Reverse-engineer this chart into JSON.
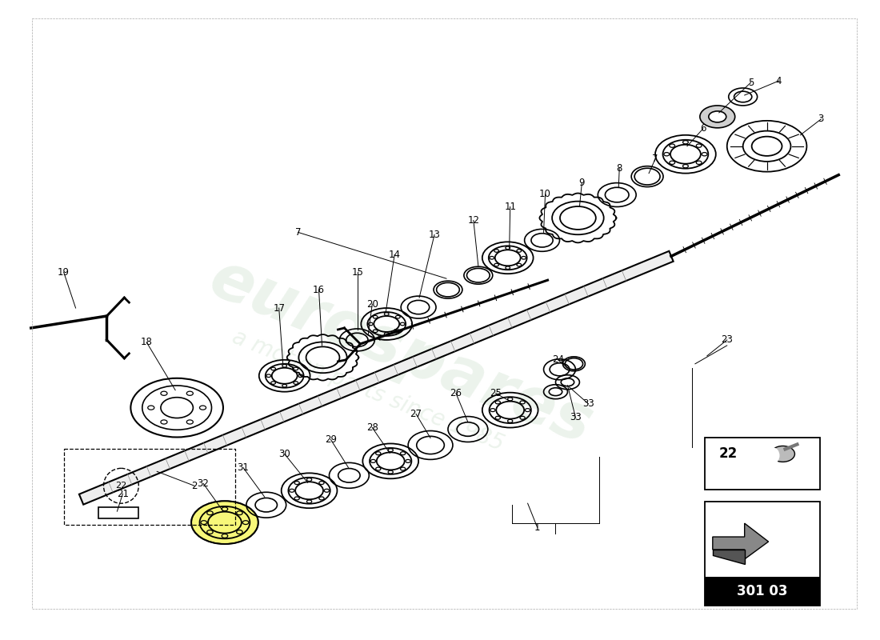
{
  "bg_color": "#ffffff",
  "fig_width": 11.0,
  "fig_height": 8.0,
  "dpi": 100,
  "line_color": "#000000",
  "watermark_color": "#c8ddc8",
  "watermark_alpha": 0.35,
  "part_code": "301 03"
}
